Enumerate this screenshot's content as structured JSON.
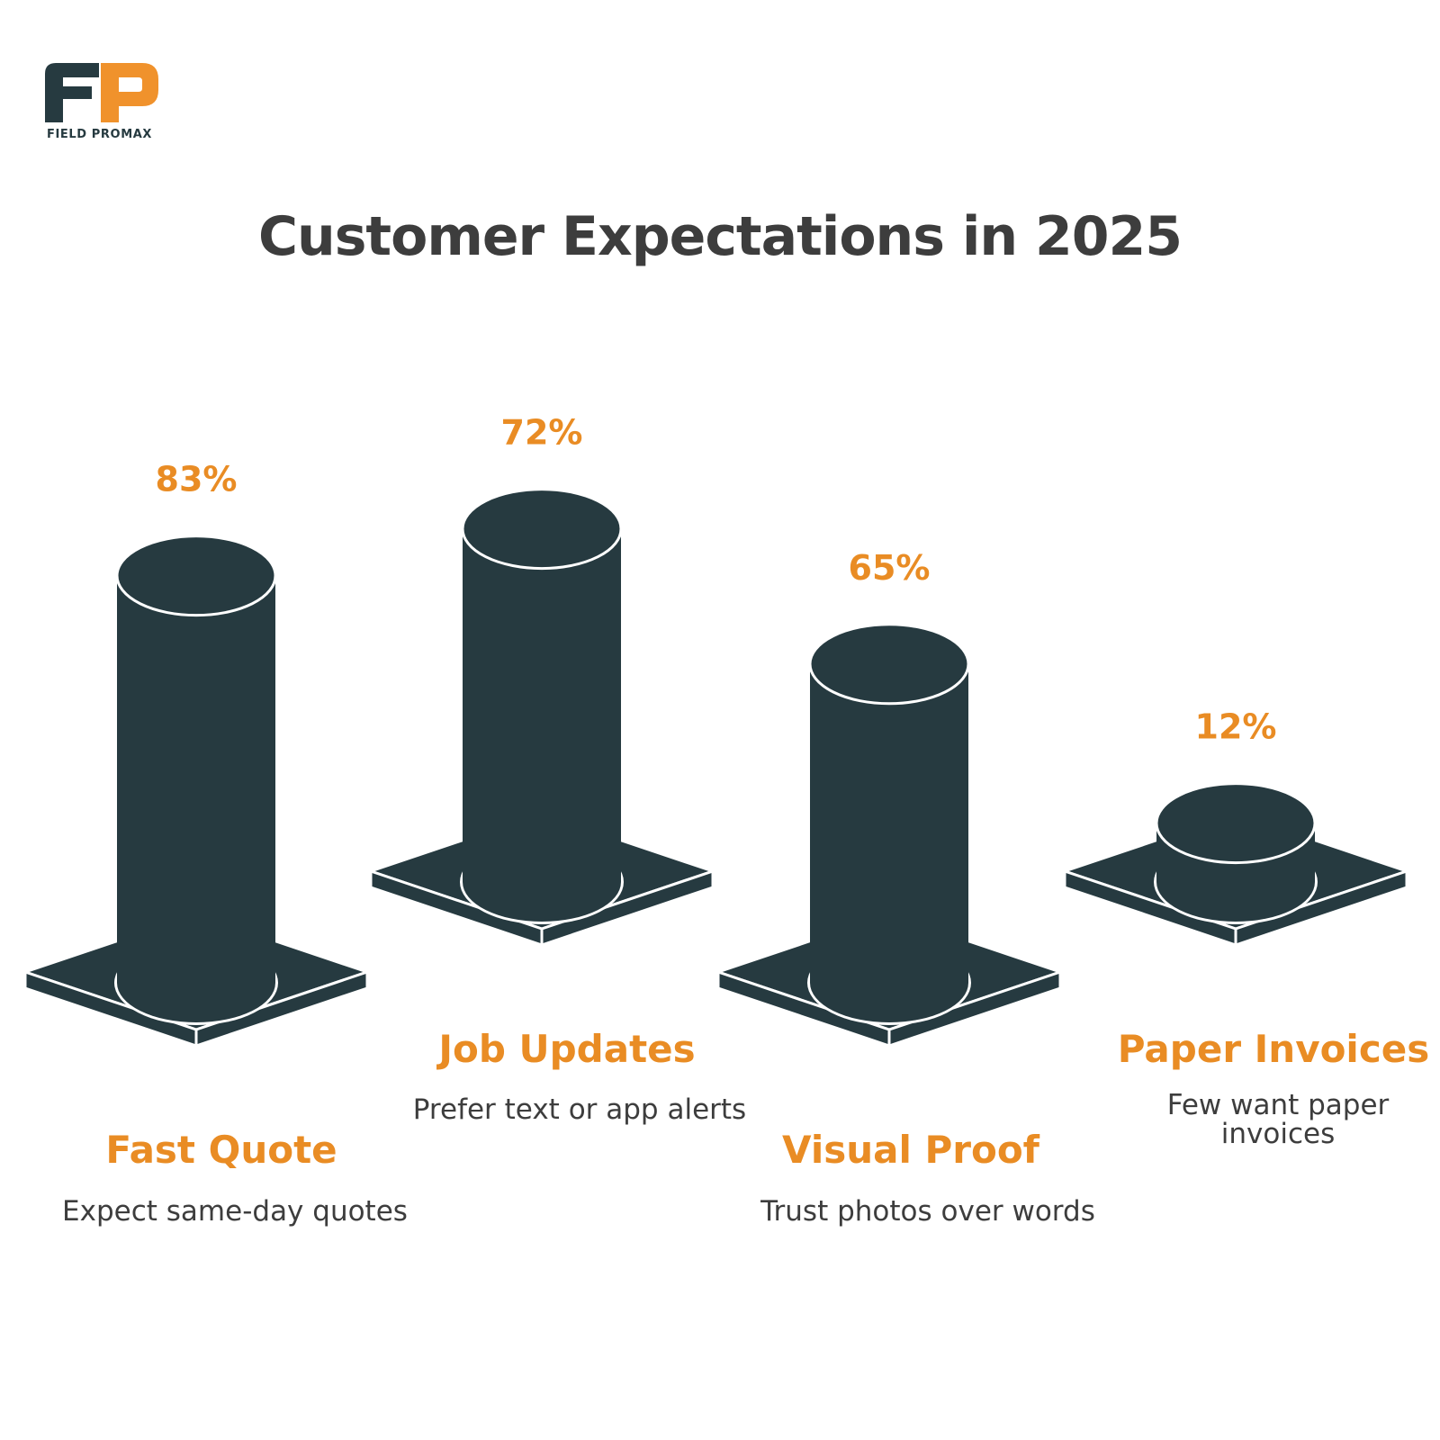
{
  "brand": {
    "logo_text": "FIELD PROMAX",
    "colors": {
      "dark": "#263a40",
      "orange": "#f0922c"
    }
  },
  "title": "Customer Expectations in 2025",
  "chart_data": {
    "type": "bar",
    "title": "Customer Expectations in 2025",
    "unit": "%",
    "categories": [
      "Fast Quote",
      "Job Updates",
      "Visual Proof",
      "Paper Invoices"
    ],
    "values": [
      83,
      72,
      65,
      12
    ],
    "value_labels": [
      "83%",
      "72%",
      "65%",
      "12%"
    ],
    "descriptions": [
      [
        "Expect same-day quotes"
      ],
      [
        "Prefer text or app alerts"
      ],
      [
        "Trust photos over words"
      ],
      [
        "Few want paper",
        "invoices"
      ]
    ],
    "colors": {
      "bar": "#263a40",
      "label": "#e98c24",
      "text": "#3d3d3d"
    },
    "grid": false,
    "legend": "none"
  }
}
